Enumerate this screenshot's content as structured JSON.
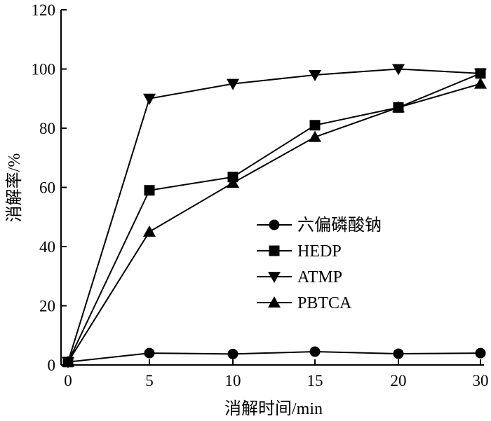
{
  "chart_data": {
    "type": "line",
    "title": "",
    "xlabel": "消解时间/min",
    "ylabel": "消解率/%",
    "x": [
      0,
      5,
      10,
      15,
      20,
      30
    ],
    "x_tick_labels": [
      "0",
      "5",
      "10",
      "15",
      "20",
      "30"
    ],
    "y_ticks": [
      0,
      20,
      40,
      60,
      80,
      100,
      120
    ],
    "ylim": [
      0,
      120
    ],
    "grid": false,
    "legend_position": "center-right",
    "series": [
      {
        "name": "六偏磷酸钠",
        "marker": "circle",
        "values": [
          1,
          4,
          3.7,
          4.5,
          3.8,
          4
        ]
      },
      {
        "name": "HEDP",
        "marker": "square",
        "values": [
          1,
          59,
          63.5,
          81,
          87,
          98.5
        ]
      },
      {
        "name": "ATMP",
        "marker": "triangle-down",
        "values": [
          1,
          90,
          95,
          98,
          100,
          98.5
        ]
      },
      {
        "name": "PBTCA",
        "marker": "triangle-up",
        "values": [
          1,
          45,
          61.5,
          77,
          87,
          95
        ]
      }
    ],
    "color": "#000000"
  }
}
